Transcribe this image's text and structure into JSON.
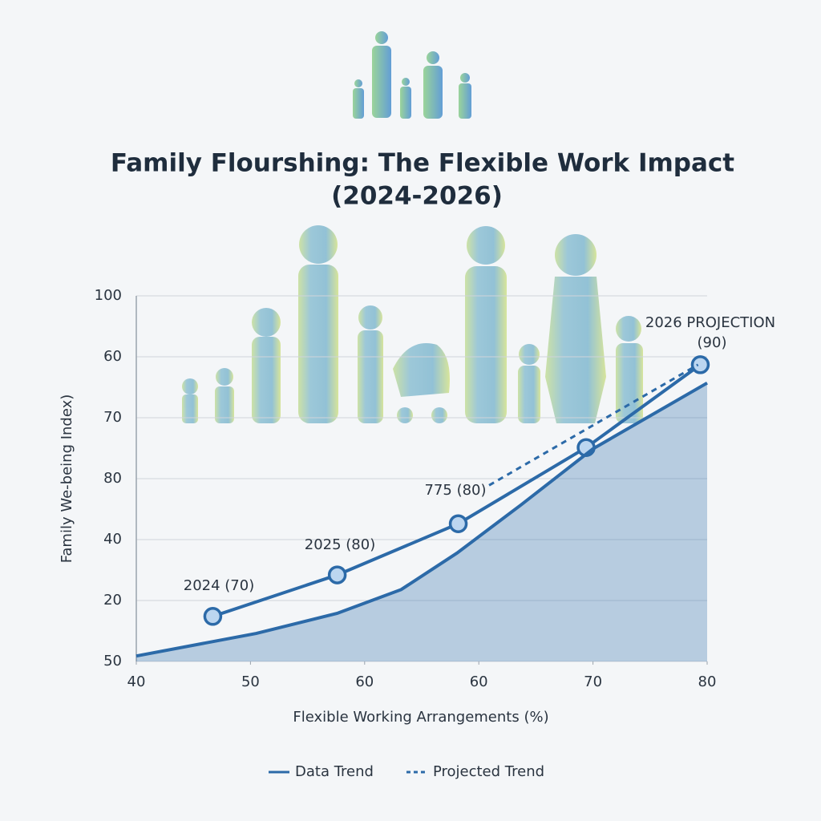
{
  "chart_data": {
    "type": "line",
    "title": [
      "Family Flourshing: The Flexible Work Impact",
      "(2024-2026)"
    ],
    "x_label": "Flexible Working Arrangements (%)",
    "y_label": "Family We-being Index)",
    "xlim": [
      0,
      5
    ],
    "xticks": [
      {
        "value": 0,
        "label": "40"
      },
      {
        "value": 1,
        "label": "50"
      },
      {
        "value": 2,
        "label": "60"
      },
      {
        "value": 3,
        "label": "60"
      },
      {
        "value": 4,
        "label": "70"
      },
      {
        "value": 5,
        "label": "80"
      }
    ],
    "ylim": [
      0,
      6
    ],
    "yticks": [
      {
        "value": 0,
        "label": "50"
      },
      {
        "value": 1,
        "label": "20"
      },
      {
        "value": 2,
        "label": "40"
      },
      {
        "value": 3,
        "label": "80"
      },
      {
        "value": 4,
        "label": "70"
      },
      {
        "value": 5,
        "label": "60"
      },
      {
        "value": 6,
        "label": "100"
      }
    ],
    "grid": true,
    "series": [
      {
        "name": "Data Trend",
        "color": "#2c6aa8",
        "style": "solid",
        "markers": true,
        "x": [
          0.67,
          1.76,
          2.82,
          3.94,
          4.94
        ],
        "values": [
          0.74,
          1.42,
          2.26,
          3.51,
          4.87
        ]
      },
      {
        "name": "Projected Trend",
        "color": "#2c6aa8",
        "style": "dashed",
        "x": [
          3.09,
          4.92
        ],
        "values": [
          2.89,
          4.87
        ]
      },
      {
        "color": "#2c6aa8",
        "style": "area",
        "x": [
          0,
          1.05,
          1.76,
          2.32,
          2.81,
          3.37,
          4.0,
          5.0
        ],
        "values": [
          0.09,
          0.46,
          0.79,
          1.18,
          1.78,
          2.57,
          3.49,
          4.57
        ]
      }
    ],
    "annotations": [
      "2024 (70)",
      "2025 (80)",
      "775 (80)",
      "2026 PROJECTION",
      "(90)"
    ]
  }
}
